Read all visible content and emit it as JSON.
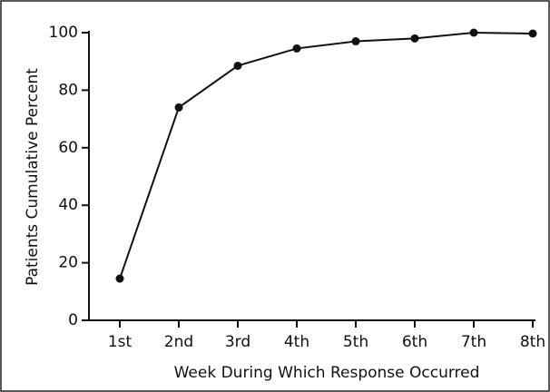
{
  "chart_data": {
    "type": "line",
    "x_label": "Week During Which Response Occurred",
    "y_label": "Patients Cumulative Percent",
    "categories": [
      "1st",
      "2nd",
      "3rd",
      "4th",
      "5th",
      "6th",
      "7th",
      "8th"
    ],
    "values": [
      14.5,
      74,
      88.5,
      94.5,
      97,
      98,
      100,
      99.7
    ],
    "color": "#111111",
    "ylim": [
      0,
      100
    ],
    "yticks": [
      0,
      20,
      40,
      60,
      80,
      100
    ],
    "grid": false
  }
}
